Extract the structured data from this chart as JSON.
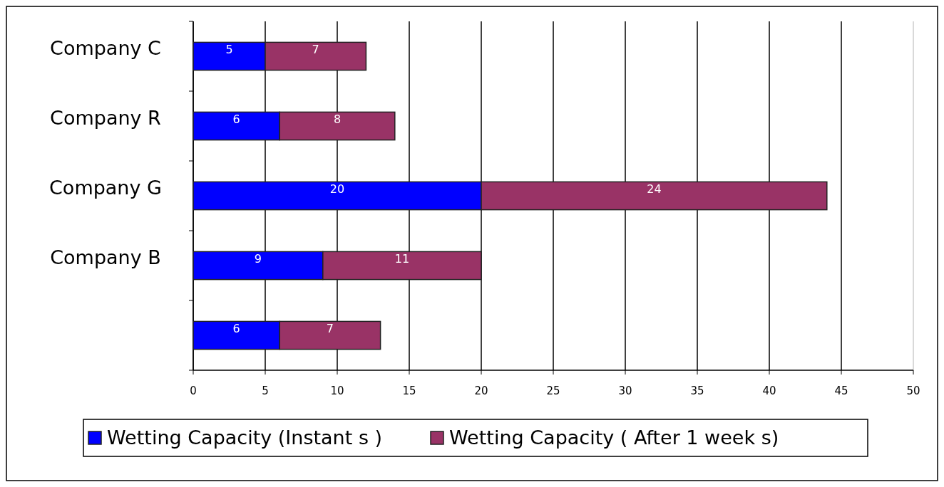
{
  "chart_data": {
    "type": "bar",
    "orientation": "horizontal",
    "stacked": true,
    "categories": [
      "Company C",
      "Company R",
      "Company G",
      "Company B",
      null
    ],
    "series": [
      {
        "name": "Wetting Capacity (Instant s )",
        "color": "#0000ff",
        "values": [
          5,
          6,
          20,
          9,
          6
        ]
      },
      {
        "name": "Wetting Capacity ( After 1 week s)",
        "color": "#993366",
        "values": [
          7,
          8,
          24,
          11,
          7
        ]
      }
    ],
    "xlim": [
      0,
      50
    ],
    "xticks": [
      0,
      5,
      10,
      15,
      20,
      25,
      30,
      35,
      40,
      45,
      50
    ],
    "grid": "x",
    "legend": "bottom",
    "data_labels": true
  }
}
